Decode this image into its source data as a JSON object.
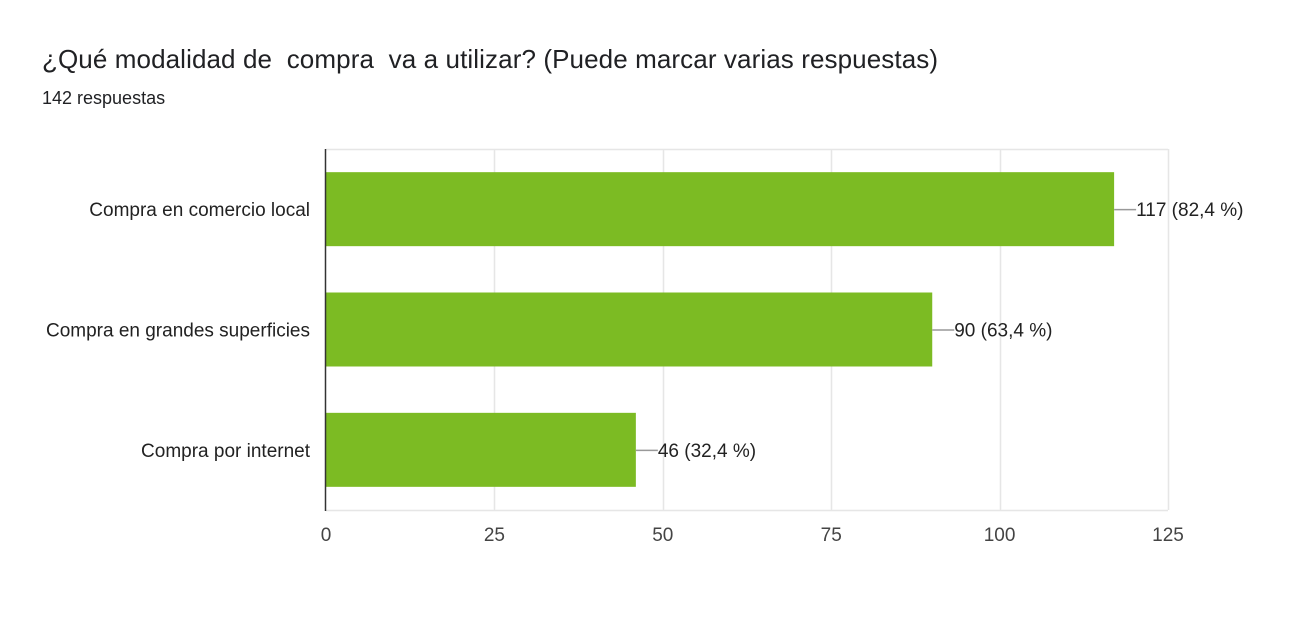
{
  "question": {
    "title": "¿Qué modalidad de  compra  va a utilizar? (Puede marcar varias respuestas)",
    "responses": "142 respuestas"
  },
  "colors": {
    "bar": "#7cbb23",
    "grid": "#e6e6e6",
    "axis": "#333333",
    "leader": "#999999"
  },
  "chart_data": {
    "type": "bar",
    "orientation": "horizontal",
    "categories": [
      "Compra en comercio local",
      "Compra en grandes superficies",
      "Compra por internet"
    ],
    "values": [
      117,
      90,
      46
    ],
    "value_labels": [
      "117 (82,4 %)",
      "90 (63,4 %)",
      "46 (32,4 %)"
    ],
    "xlim": [
      0,
      125
    ],
    "xticks": [
      0,
      25,
      50,
      75,
      100,
      125
    ],
    "grid": true
  }
}
